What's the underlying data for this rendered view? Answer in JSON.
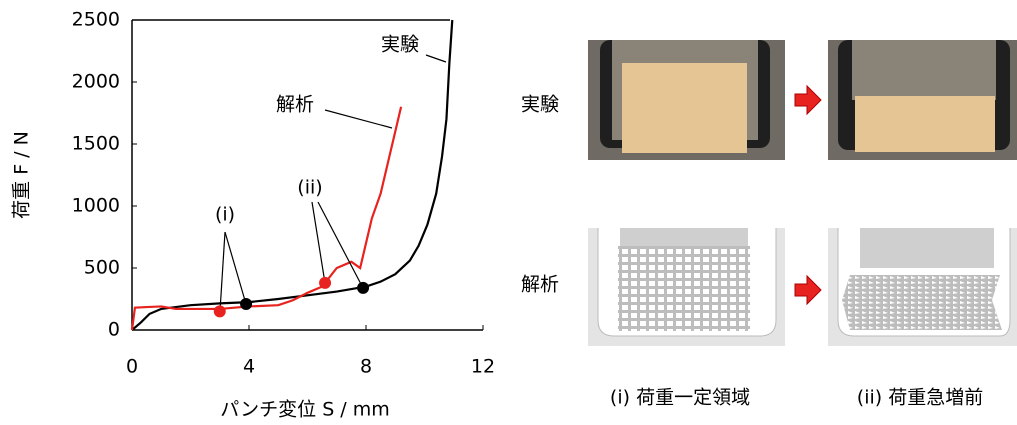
{
  "chart_data": {
    "type": "line",
    "xlabel": "パンチ変位 S / mm",
    "ylabel": "荷重 F / N",
    "xlim": [
      0,
      12
    ],
    "xticks": [
      0,
      4,
      8,
      12
    ],
    "ylim": [
      0,
      2500
    ],
    "yticks": [
      0,
      500,
      1000,
      1500,
      2000,
      2500
    ],
    "series": [
      {
        "name": "実験",
        "color": "#000000",
        "x": [
          0,
          0.3,
          0.6,
          1,
          2,
          3,
          4,
          5,
          6,
          7,
          8,
          8.5,
          9,
          9.5,
          9.8,
          10.1,
          10.4,
          10.6,
          10.75,
          10.85,
          10.95
        ],
        "values": [
          0,
          60,
          130,
          170,
          200,
          215,
          225,
          250,
          280,
          310,
          350,
          390,
          450,
          560,
          680,
          850,
          1100,
          1400,
          1700,
          2150,
          2500
        ]
      },
      {
        "name": "解析",
        "color": "#e8231f",
        "x": [
          0,
          0.1,
          0.5,
          1,
          1.5,
          2,
          3,
          3.5,
          4,
          5,
          5.5,
          6,
          6.5,
          7,
          7.5,
          7.8,
          8.2,
          8.5,
          8.8,
          9.2
        ],
        "values": [
          0,
          180,
          185,
          190,
          170,
          170,
          170,
          180,
          190,
          200,
          240,
          300,
          350,
          500,
          550,
          500,
          900,
          1100,
          1400,
          1800
        ]
      }
    ],
    "points": [
      {
        "x": 3,
        "y": 150,
        "color": "#e8231f"
      },
      {
        "x": 6.6,
        "y": 380,
        "color": "#e8231f"
      },
      {
        "x": 3.9,
        "y": 210,
        "color": "#000000"
      },
      {
        "x": 7.9,
        "y": 340,
        "color": "#000000"
      }
    ],
    "annotations": [
      "(i)",
      "(ii)",
      "解析",
      "実験"
    ]
  },
  "panel": {
    "rows": [
      "実験",
      "解析"
    ],
    "captions": [
      "(i) 荷重一定領域",
      "(ii) 荷重急増前"
    ]
  }
}
